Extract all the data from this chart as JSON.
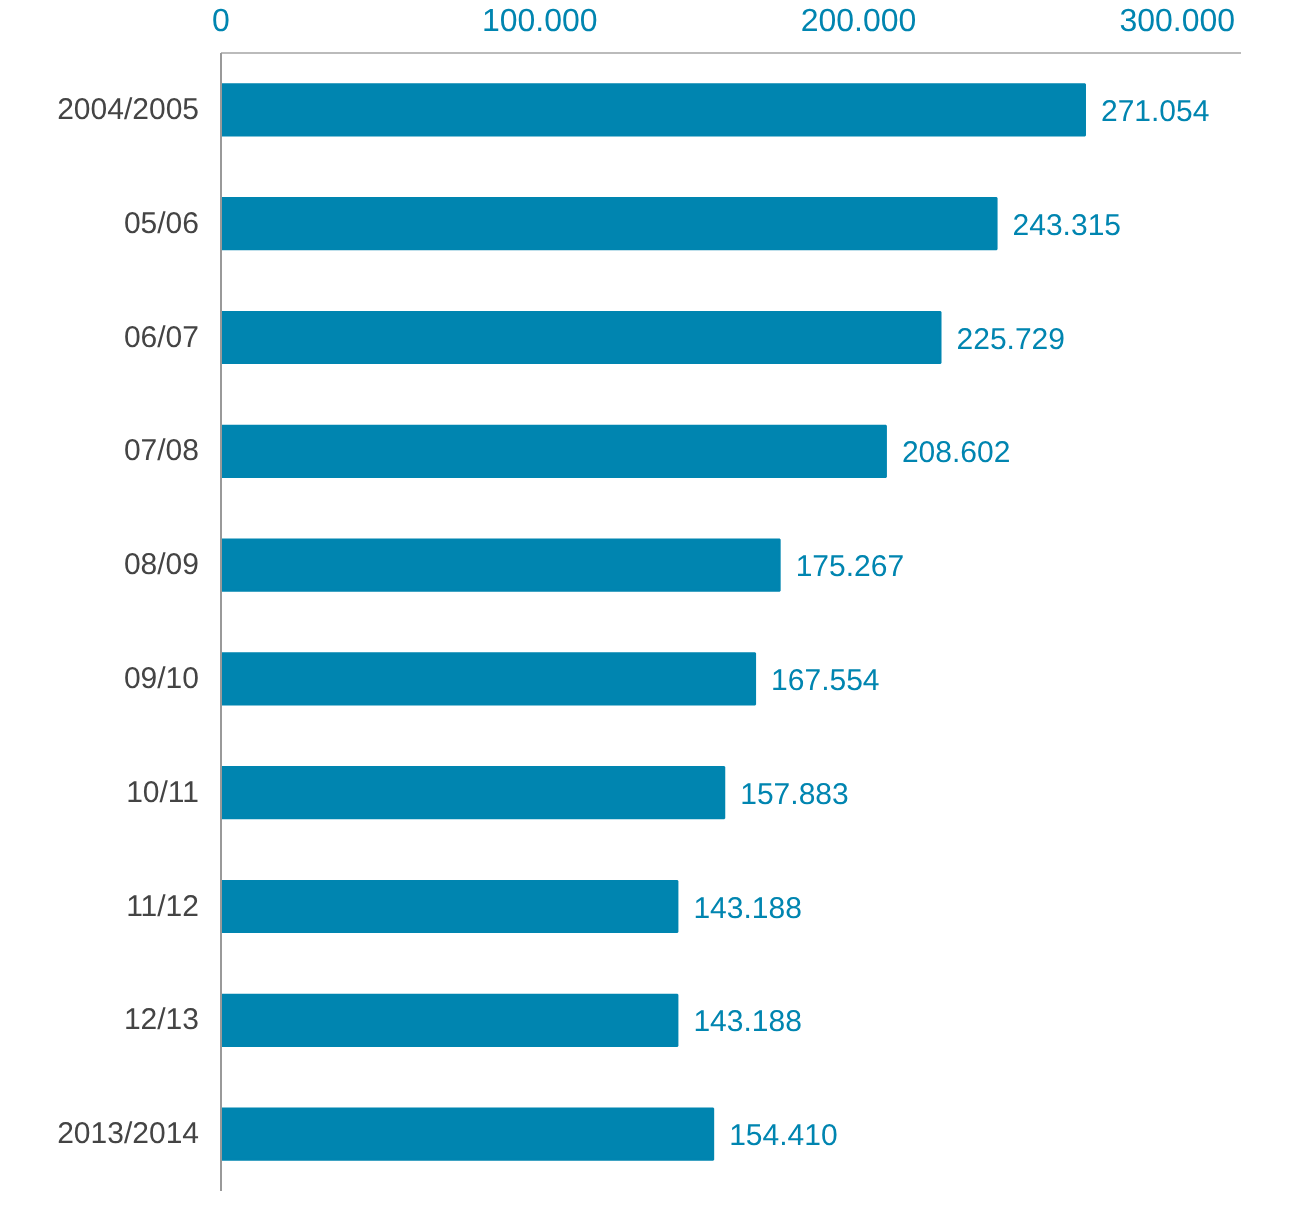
{
  "chart_data": {
    "type": "bar",
    "orientation": "horizontal",
    "categories": [
      "2004/2005",
      "05/06",
      "06/07",
      "07/08",
      "08/09",
      "09/10",
      "10/11",
      "11/12",
      "12/13",
      "2013/2014"
    ],
    "values": [
      271054,
      243315,
      225729,
      208602,
      175267,
      167554,
      157883,
      143188,
      143188,
      154410
    ],
    "value_labels": [
      "271.054",
      "243.315",
      "225.729",
      "208.602",
      "175.267",
      "167.554",
      "157.883",
      "143.188",
      "143.188",
      "154.410"
    ],
    "color": "#0085b0",
    "xlim": [
      0,
      320000
    ],
    "xticks": [
      0,
      {
        "value": 100000,
        "label": "100.000"
      },
      {
        "value": 200000,
        "label": "200.000"
      },
      {
        "value": 300000,
        "label": "300.000"
      }
    ],
    "grid": false
  }
}
